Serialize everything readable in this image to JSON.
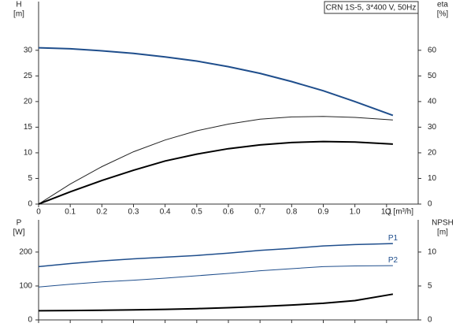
{
  "chart_data": [
    {
      "type": "line",
      "title": "CRN 1S-5, 3*400 V, 50Hz",
      "ylabel": [
        "H",
        "[m]"
      ],
      "y2label": [
        "eta",
        "[%]"
      ],
      "xlabel": "Q [m³/h]",
      "xlim": [
        0,
        1.2
      ],
      "ylim": [
        0,
        39.5
      ],
      "y2lim": [
        0,
        79
      ],
      "xticks": [
        0,
        0.1,
        0.2,
        0.3,
        0.4,
        0.5,
        0.6,
        0.7,
        0.8,
        0.9,
        {
          "value": 1,
          "label": "1.0"
        },
        1.1
      ],
      "yticks": [
        0,
        5,
        10,
        15,
        20,
        25,
        30
      ],
      "y2ticks": [
        0,
        10,
        20,
        30,
        40,
        50,
        60
      ],
      "series": [
        {
          "color": "#1f4e8c",
          "line_width": 2,
          "x": [
            0,
            0.1,
            0.2,
            0.3,
            0.4,
            0.5,
            0.6,
            0.7,
            0.8,
            0.9,
            1.0,
            1.12
          ],
          "values": [
            30.5,
            30.3,
            29.9,
            29.4,
            28.7,
            27.9,
            26.8,
            25.5,
            23.9,
            22.1,
            20.0,
            17.3
          ]
        },
        {
          "color": "#222222",
          "line_width": 1,
          "axis": "y2",
          "x": [
            0,
            0.1,
            0.2,
            0.3,
            0.4,
            0.5,
            0.6,
            0.7,
            0.8,
            0.9,
            1.0,
            1.12
          ],
          "values": [
            0,
            7.8,
            14.6,
            20.4,
            25.0,
            28.6,
            31.2,
            33.1,
            34.0,
            34.2,
            33.8,
            32.8
          ]
        },
        {
          "color": "#000000",
          "line_width": 2,
          "axis": "y2",
          "x": [
            0,
            0.1,
            0.2,
            0.3,
            0.4,
            0.5,
            0.6,
            0.7,
            0.8,
            0.9,
            1.0,
            1.12
          ],
          "values": [
            0,
            4.8,
            9.2,
            13.2,
            16.8,
            19.5,
            21.6,
            23.1,
            24.0,
            24.4,
            24.2,
            23.4
          ]
        }
      ]
    },
    {
      "type": "line",
      "ylabel": [
        "P",
        "[W]"
      ],
      "y2label": [
        "NPSH",
        "[m]"
      ],
      "xlim": [
        0,
        1.2
      ],
      "ylim": [
        0,
        295
      ],
      "y2lim": [
        0,
        14.75
      ],
      "yticks": [
        0,
        100,
        200
      ],
      "y2ticks": [
        0,
        5,
        10
      ],
      "series": [
        {
          "name": "P1",
          "color": "#1f4e8c",
          "line_width": 1.5,
          "x": [
            0,
            0.1,
            0.2,
            0.3,
            0.4,
            0.5,
            0.6,
            0.7,
            0.8,
            0.9,
            1.0,
            1.12
          ],
          "values": [
            157,
            166,
            174,
            180,
            185,
            190,
            197,
            205,
            211,
            218,
            222,
            225
          ]
        },
        {
          "name": "P2",
          "color": "#1f4e8c",
          "line_width": 1,
          "x": [
            0,
            0.1,
            0.2,
            0.3,
            0.4,
            0.5,
            0.6,
            0.7,
            0.8,
            0.9,
            1.0,
            1.12
          ],
          "values": [
            97,
            105,
            112,
            117,
            123,
            130,
            137,
            145,
            151,
            157,
            159,
            160
          ]
        },
        {
          "color": "#000000",
          "line_width": 2,
          "axis": "y2",
          "x": [
            0,
            0.1,
            0.2,
            0.3,
            0.4,
            0.5,
            0.6,
            0.7,
            0.8,
            0.9,
            1.0,
            1.12
          ],
          "values": [
            1.35,
            1.38,
            1.42,
            1.48,
            1.56,
            1.66,
            1.8,
            1.98,
            2.2,
            2.45,
            2.85,
            3.8
          ]
        }
      ]
    }
  ]
}
